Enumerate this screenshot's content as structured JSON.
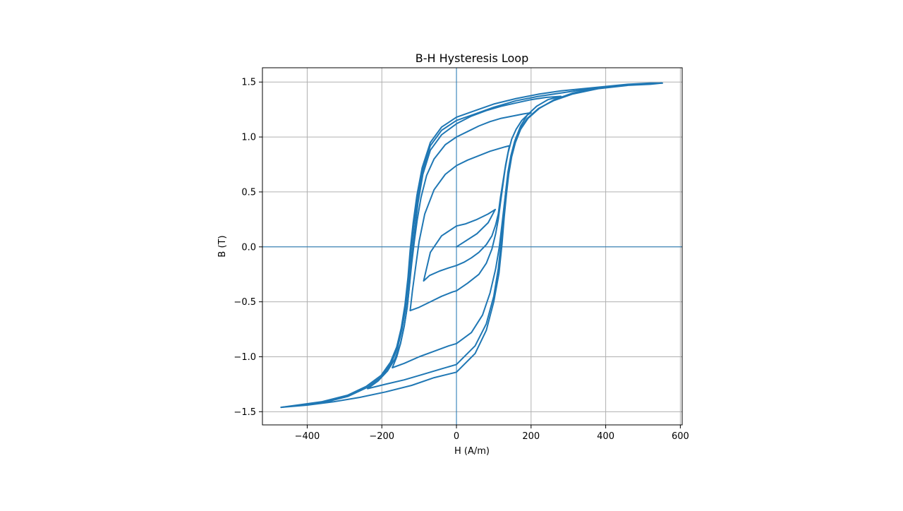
{
  "chart_data": {
    "type": "line",
    "title": "B-H Hysteresis Loop",
    "xlabel": "H (A/m)",
    "ylabel": "B (T)",
    "xlim": [
      -520,
      605
    ],
    "ylim": [
      -1.62,
      1.63
    ],
    "xticks": [
      -400,
      -200,
      0,
      200,
      400,
      600
    ],
    "xtick_labels": [
      "−400",
      "−200",
      "0",
      "200",
      "400",
      "600"
    ],
    "yticks": [
      -1.5,
      -1.0,
      -0.5,
      0.0,
      0.5,
      1.0,
      1.5
    ],
    "ytick_labels": [
      "−1.5",
      "−1.0",
      "−0.5",
      "0.0",
      "0.5",
      "1.0",
      "1.5"
    ],
    "grid": true,
    "reference_lines": [
      {
        "orientation": "vertical",
        "x": 0
      },
      {
        "orientation": "horizontal",
        "y": 0
      }
    ],
    "color": "#1f77b4",
    "series": [
      {
        "x": [
          0,
          55,
          85,
          104,
          85,
          55,
          25,
          0,
          -40,
          -70,
          -88,
          -72,
          -45,
          -20,
          0
        ],
        "y": [
          0.0,
          0.12,
          0.22,
          0.34,
          0.3,
          0.25,
          0.21,
          0.19,
          0.1,
          -0.05,
          -0.31,
          -0.26,
          -0.22,
          -0.19,
          -0.17
        ]
      },
      {
        "x": [
          0,
          20,
          40,
          60,
          80,
          95,
          105,
          112,
          118,
          125,
          132,
          142,
          130,
          110,
          90,
          60,
          30,
          0,
          -30,
          -60,
          -85,
          -100,
          -110,
          -118,
          -124,
          -100,
          -70,
          -40,
          -10,
          0
        ],
        "y": [
          -0.17,
          -0.14,
          -0.1,
          -0.05,
          0.02,
          0.1,
          0.2,
          0.3,
          0.45,
          0.6,
          0.75,
          0.92,
          0.91,
          0.89,
          0.87,
          0.83,
          0.79,
          0.74,
          0.66,
          0.52,
          0.3,
          0.05,
          -0.2,
          -0.4,
          -0.58,
          -0.55,
          -0.5,
          -0.45,
          -0.41,
          -0.4
        ]
      },
      {
        "x": [
          0,
          30,
          60,
          80,
          95,
          105,
          112,
          118,
          124,
          130,
          138,
          148,
          160,
          175,
          190,
          200,
          180,
          150,
          120,
          90,
          60,
          30,
          0,
          -30,
          -60,
          -80,
          -95,
          -105,
          -113,
          -120,
          -126,
          -132,
          -140,
          -150,
          -160,
          -172,
          -140,
          -100,
          -60,
          -20,
          0
        ],
        "y": [
          -0.4,
          -0.33,
          -0.25,
          -0.15,
          -0.02,
          0.12,
          0.25,
          0.4,
          0.55,
          0.7,
          0.85,
          0.98,
          1.07,
          1.15,
          1.2,
          1.22,
          1.21,
          1.19,
          1.17,
          1.14,
          1.1,
          1.05,
          1.0,
          0.93,
          0.8,
          0.65,
          0.45,
          0.25,
          0.05,
          -0.15,
          -0.35,
          -0.55,
          -0.72,
          -0.88,
          -1.0,
          -1.1,
          -1.06,
          -1.0,
          -0.95,
          -0.9,
          -0.88
        ]
      },
      {
        "x": [
          0,
          40,
          70,
          90,
          105,
          115,
          122,
          128,
          134,
          140,
          148,
          158,
          172,
          190,
          215,
          245,
          280,
          240,
          200,
          160,
          120,
          80,
          40,
          0,
          -40,
          -70,
          -90,
          -103,
          -112,
          -120,
          -126,
          -132,
          -140,
          -150,
          -165,
          -185,
          -210,
          -238,
          -190,
          -140,
          -90,
          -40,
          0
        ],
        "y": [
          -0.88,
          -0.78,
          -0.62,
          -0.42,
          -0.2,
          0.0,
          0.2,
          0.38,
          0.55,
          0.7,
          0.85,
          0.98,
          1.1,
          1.2,
          1.28,
          1.34,
          1.37,
          1.36,
          1.34,
          1.31,
          1.28,
          1.24,
          1.19,
          1.12,
          1.02,
          0.88,
          0.66,
          0.4,
          0.15,
          -0.1,
          -0.35,
          -0.55,
          -0.72,
          -0.88,
          -1.02,
          -1.13,
          -1.22,
          -1.29,
          -1.25,
          -1.21,
          -1.16,
          -1.11,
          -1.07
        ]
      },
      {
        "x": [
          0,
          50,
          80,
          100,
          112,
          120,
          126,
          132,
          138,
          146,
          156,
          170,
          190,
          220,
          260,
          310,
          380,
          460,
          550,
          520,
          460,
          400,
          340,
          280,
          220,
          160,
          100,
          50,
          0,
          -40,
          -70,
          -90,
          -104,
          -114,
          -122,
          -128,
          -136,
          -146,
          -158,
          -175,
          -200,
          -240,
          -290,
          -360,
          -470,
          -400,
          -330,
          -260,
          -190,
          -120,
          -60,
          0
        ],
        "y": [
          -1.07,
          -0.9,
          -0.7,
          -0.45,
          -0.2,
          0.05,
          0.3,
          0.5,
          0.68,
          0.83,
          0.96,
          1.07,
          1.17,
          1.26,
          1.33,
          1.39,
          1.44,
          1.47,
          1.49,
          1.48,
          1.47,
          1.45,
          1.43,
          1.4,
          1.37,
          1.33,
          1.27,
          1.21,
          1.15,
          1.06,
          0.92,
          0.7,
          0.45,
          0.2,
          -0.05,
          -0.3,
          -0.55,
          -0.75,
          -0.92,
          -1.06,
          -1.18,
          -1.28,
          -1.36,
          -1.42,
          -1.46,
          -1.44,
          -1.41,
          -1.37,
          -1.32,
          -1.26,
          -1.19,
          -1.14
        ]
      },
      {
        "x": [
          0,
          50,
          80,
          100,
          114,
          122,
          128,
          134,
          140,
          148,
          158,
          172,
          192,
          222,
          262,
          312,
          382,
          462,
          552,
          520,
          460,
          400,
          340,
          280,
          220,
          160,
          100,
          50,
          0,
          -40,
          -70,
          -92,
          -106,
          -116,
          -124,
          -130,
          -138,
          -148,
          -160,
          -177,
          -202,
          -242,
          -292,
          -362,
          -470
        ],
        "y": [
          -1.14,
          -0.97,
          -0.76,
          -0.5,
          -0.24,
          0.02,
          0.27,
          0.48,
          0.66,
          0.82,
          0.95,
          1.07,
          1.17,
          1.26,
          1.34,
          1.4,
          1.45,
          1.48,
          1.49,
          1.49,
          1.48,
          1.46,
          1.44,
          1.42,
          1.39,
          1.35,
          1.3,
          1.24,
          1.18,
          1.09,
          0.95,
          0.72,
          0.47,
          0.22,
          -0.03,
          -0.28,
          -0.53,
          -0.74,
          -0.91,
          -1.05,
          -1.17,
          -1.27,
          -1.35,
          -1.41,
          -1.46
        ]
      }
    ]
  }
}
